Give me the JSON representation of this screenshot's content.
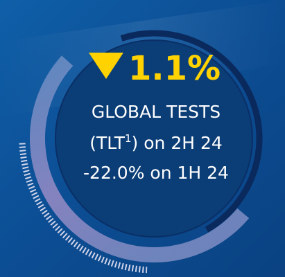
{
  "headline": "1.1%",
  "label": "GLOBAL TESTS",
  "subtitle": {
    "text": "(TLT",
    "superscript": "1",
    "suffix": ") on 2H 24"
  },
  "comparison": "-22.0% on 1H 24"
}
